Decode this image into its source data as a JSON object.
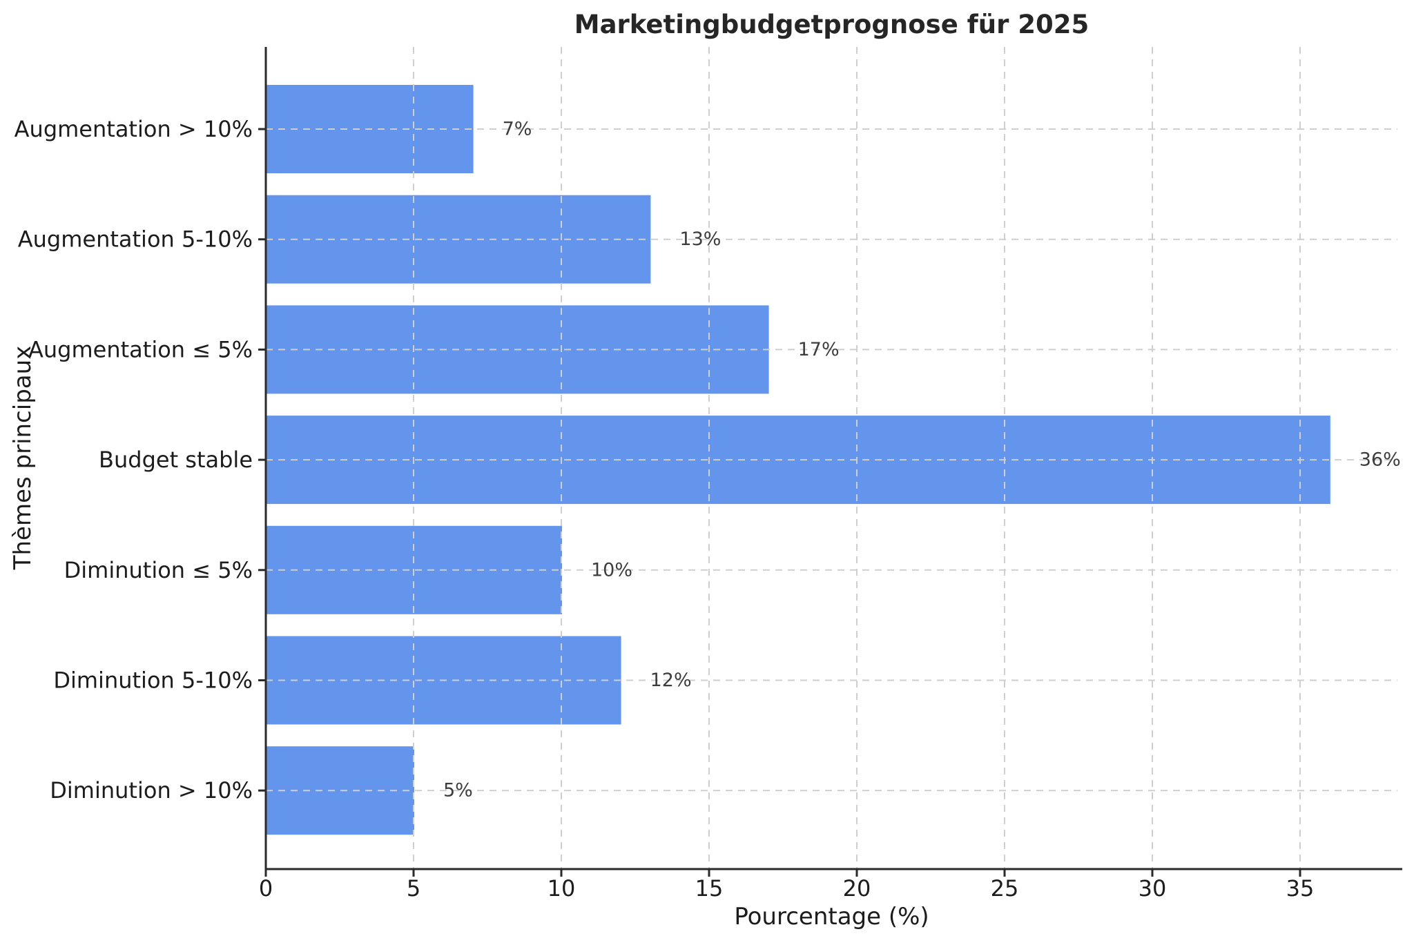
{
  "chart_data": {
    "type": "bar",
    "orientation": "horizontal",
    "title": "Marketingbudgetprognose für 2025",
    "xlabel": "Pourcentage (%)",
    "ylabel": "Thèmes principaux",
    "categories": [
      "Augmentation > 10%",
      "Augmentation 5-10%",
      "Augmentation ≤ 5%",
      "Budget stable",
      "Diminution ≤ 5%",
      "Diminution 5-10%",
      "Diminution > 10%"
    ],
    "values": [
      7,
      13,
      17,
      36,
      10,
      12,
      5
    ],
    "value_labels": [
      "7%",
      "13%",
      "17%",
      "36%",
      "10%",
      "12%",
      "5%"
    ],
    "xticks": [
      0,
      5,
      10,
      15,
      20,
      25,
      30,
      35
    ],
    "xtick_labels": [
      "0",
      "5",
      "10",
      "15",
      "20",
      "25",
      "30",
      "35"
    ],
    "xlim": [
      0,
      38.3
    ],
    "grid": true,
    "grid_style": "dashed",
    "legend": "none",
    "styles": {
      "bar_color": "#6495ED",
      "grid_color": "#cfcfcf",
      "axis_color": "#2a2a2a",
      "text_color": "#1c1c1c",
      "value_label_color": "#3d3d3d",
      "title_color": "#262626",
      "background": "#ffffff"
    }
  }
}
